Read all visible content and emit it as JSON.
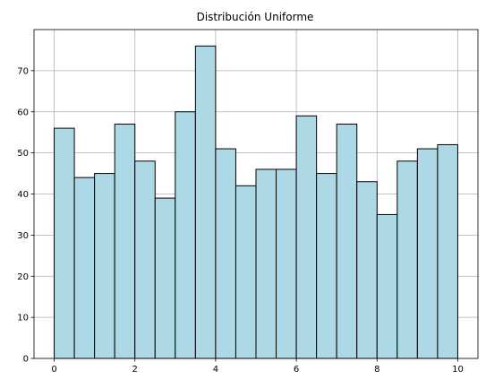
{
  "chart_data": {
    "type": "bar",
    "title": "Distribución Uniforme",
    "xlabel": "",
    "ylabel": "",
    "bin_edges": [
      0,
      0.5,
      1,
      1.5,
      2,
      2.5,
      3,
      3.5,
      4,
      4.5,
      5,
      5.5,
      6,
      6.5,
      7,
      7.5,
      8,
      8.5,
      9,
      9.5,
      10
    ],
    "values": [
      56,
      44,
      45,
      57,
      48,
      39,
      60,
      76,
      51,
      42,
      46,
      46,
      59,
      45,
      57,
      43,
      35,
      48,
      51,
      52
    ],
    "xlim": [
      -0.5,
      10.5
    ],
    "ylim": [
      0,
      80
    ],
    "xticks": [
      0,
      2,
      4,
      6,
      8,
      10
    ],
    "xtick_labels": [
      "0",
      "2",
      "4",
      "6",
      "8",
      "10"
    ],
    "yticks": [
      0,
      10,
      20,
      30,
      40,
      50,
      60,
      70
    ],
    "ytick_labels": [
      "0",
      "10",
      "20",
      "30",
      "40",
      "50",
      "60",
      "70"
    ],
    "grid": true,
    "bar_color": "#add8e6",
    "edge_color": "#000000",
    "grid_color": "#b0b0b0"
  }
}
